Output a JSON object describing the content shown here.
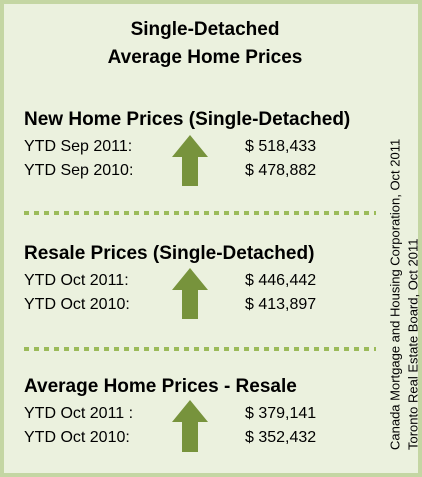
{
  "title": {
    "lines": [
      "Single-Detached",
      "Average Home Prices"
    ]
  },
  "sections": [
    {
      "heading": "New Home Prices (Single-Detached)",
      "rows": [
        {
          "label": "YTD Sep 2011:",
          "value": "$ 518,433"
        },
        {
          "label": "YTD Sep 2010:",
          "value": "$ 478,882"
        }
      ]
    },
    {
      "heading": "Resale Prices (Single-Detached)",
      "rows": [
        {
          "label": "YTD Oct 2011:",
          "value": "$ 446,442"
        },
        {
          "label": "YTD Oct 2010:",
          "value": "$ 413,897"
        }
      ]
    },
    {
      "heading": "Average Home Prices - Resale",
      "rows": [
        {
          "label": "YTD Oct 2011 :",
          "value": "$ 379,141"
        },
        {
          "label": "YTD Oct 2010:",
          "value": "$ 352,432"
        }
      ]
    }
  ],
  "sources": [
    "Canada Mortgage and Housing Corporation, Oct 2011",
    "Toronto Real Estate Board, Oct 2011"
  ]
}
